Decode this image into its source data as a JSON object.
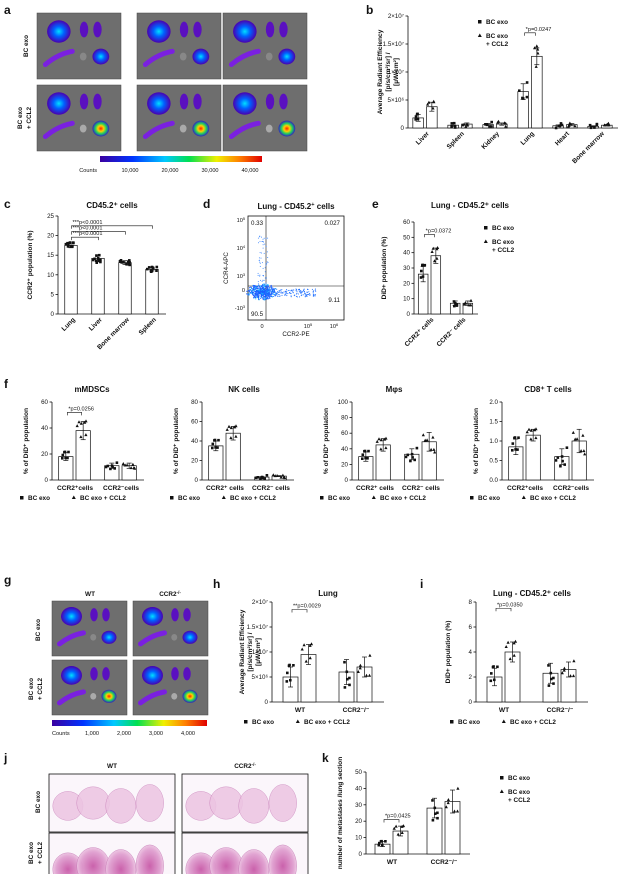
{
  "panel_letters": [
    "a",
    "b",
    "c",
    "d",
    "e",
    "f",
    "g",
    "h",
    "i",
    "j",
    "k"
  ],
  "imaging_a": {
    "rows": [
      "BC exo",
      "BC exo\n+ CCL2"
    ],
    "colorbar_label": "Counts",
    "colorbar_ticks": [
      "10,000",
      "20,000",
      "30,000",
      "40,000"
    ]
  },
  "imaging_g": {
    "cols": [
      "WT",
      "CCR2-/-"
    ],
    "rows": [
      "BC exo",
      "BC exo\n+ CCL2"
    ],
    "colorbar_label": "Counts",
    "colorbar_ticks": [
      "1,000",
      "2,000",
      "3,000",
      "4,000"
    ]
  },
  "histo_j": {
    "cols": [
      "WT",
      "CCR2-/-"
    ],
    "rows": [
      "BC exo",
      "BC exo\n+ CCL2"
    ]
  },
  "flow_d": {
    "title": "Lung - CD45.2+ cells",
    "xlabel": "CCR2-PE",
    "ylabel": "CCR4-APC",
    "quadrants": [
      "0.33",
      "0.027",
      "90.5",
      "9.11"
    ],
    "yticks": [
      "10^5",
      "10^4",
      "10^3",
      "0",
      "-10^3"
    ],
    "xticks": [
      "0",
      "10^5",
      "10^6"
    ]
  },
  "colors": {
    "ink": "#111111",
    "bar_fill": "#ffffff"
  },
  "chart_data": [
    {
      "id": "b",
      "type": "bar",
      "title": "",
      "ylabel": "Average Radiant Efficiency [p/s/cm²/sr] / [µW/cm²]",
      "ylim": [
        0,
        20000000
      ],
      "yticks": [
        "0",
        "5×10⁶",
        "1×10⁷",
        "1.5×10⁷",
        "2×10⁷"
      ],
      "categories": [
        "Liver",
        "Spleen",
        "Kidney",
        "Lung",
        "Heart",
        "Bone marrow"
      ],
      "series": [
        {
          "name": "BC exo",
          "values": [
            1800000,
            500000,
            600000,
            6500000,
            400000,
            300000
          ],
          "errors": [
            600000,
            200000,
            200000,
            1400000,
            150000,
            100000
          ]
        },
        {
          "name": "BC exo + CCL2",
          "values": [
            3800000,
            700000,
            700000,
            12800000,
            600000,
            500000
          ],
          "errors": [
            800000,
            200000,
            200000,
            1500000,
            200000,
            150000
          ]
        }
      ],
      "annotations": [
        "*p=0.0247"
      ],
      "legend": "top-right"
    },
    {
      "id": "c",
      "type": "bar",
      "title": "CD45.2⁺ cells",
      "ylabel": "CCR2⁺ population (%)",
      "ylim": [
        0,
        25
      ],
      "yticks": [
        "0",
        "5",
        "10",
        "15",
        "20",
        "25"
      ],
      "categories": [
        "Lung",
        "Liver",
        "Bone marrow",
        "Spleen"
      ],
      "values": [
        17.5,
        14.2,
        13.1,
        11.4
      ],
      "errors": [
        0.6,
        0.9,
        0.5,
        0.4
      ],
      "annotations": [
        "***p<0.0001",
        "***p<0.0001",
        "***p<0.0001"
      ]
    },
    {
      "id": "e",
      "type": "bar",
      "title": "Lung - CD45.2⁺ cells",
      "ylabel": "DiD+ population (%)",
      "ylim": [
        0,
        60
      ],
      "yticks": [
        "0",
        "10",
        "20",
        "30",
        "40",
        "50",
        "60"
      ],
      "categories": [
        "CCR2⁺ cells",
        "CCR2⁻ cells"
      ],
      "series": [
        {
          "name": "BC exo",
          "values": [
            26,
            7
          ],
          "errors": [
            5,
            1.5
          ]
        },
        {
          "name": "BC exo + CCL2",
          "values": [
            38,
            7
          ],
          "errors": [
            5,
            1.5
          ]
        }
      ],
      "annotations": [
        "*p=0.0372"
      ],
      "legend": "top-right"
    },
    {
      "id": "f1",
      "type": "bar",
      "title": "mMDSCs",
      "ylabel": "% of DiD⁺ population",
      "ylim": [
        0,
        60
      ],
      "yticks": [
        "0",
        "20",
        "40",
        "60"
      ],
      "categories": [
        "CCR2⁺cells",
        "CCR2⁻cells"
      ],
      "series": [
        {
          "name": "BC exo",
          "values": [
            18,
            11
          ],
          "errors": [
            3,
            2
          ]
        },
        {
          "name": "BC exo + CCL2",
          "values": [
            38,
            11
          ],
          "errors": [
            7,
            2
          ]
        }
      ],
      "annotations": [
        "*p=0.0256"
      ]
    },
    {
      "id": "f2",
      "type": "bar",
      "title": "NK cells",
      "ylabel": "% of DiD⁺ population",
      "ylim": [
        0,
        80
      ],
      "yticks": [
        "0",
        "20",
        "40",
        "60",
        "80"
      ],
      "categories": [
        "CCR2⁺ cells",
        "CCR2⁻ cells"
      ],
      "series": [
        {
          "name": "BC exo",
          "values": [
            35,
            3
          ],
          "errors": [
            5,
            0.5
          ]
        },
        {
          "name": "BC exo + CCL2",
          "values": [
            48,
            4
          ],
          "errors": [
            7,
            0.5
          ]
        }
      ]
    },
    {
      "id": "f3",
      "type": "bar",
      "title": "Mφs",
      "ylabel": "% of DiD⁺ population",
      "ylim": [
        0,
        100
      ],
      "yticks": [
        "0",
        "20",
        "40",
        "60",
        "80",
        "100"
      ],
      "categories": [
        "CCR2⁺ cells",
        "CCR2⁻ cells"
      ],
      "series": [
        {
          "name": "BC exo",
          "values": [
            30,
            33
          ],
          "errors": [
            6,
            7
          ]
        },
        {
          "name": "BC exo + CCL2",
          "values": [
            45,
            49
          ],
          "errors": [
            8,
            12
          ]
        }
      ]
    },
    {
      "id": "f4",
      "type": "bar",
      "title": "CD8⁺ T cells",
      "ylabel": "% of DiD⁺ population",
      "ylim": [
        0,
        2.0
      ],
      "yticks": [
        "0.0",
        "0.5",
        "1.0",
        "1.5",
        "2.0"
      ],
      "categories": [
        "CCR2⁺cells",
        "CCR2⁻cells"
      ],
      "series": [
        {
          "name": "BC exo",
          "values": [
            0.85,
            0.6
          ],
          "errors": [
            0.2,
            0.2
          ]
        },
        {
          "name": "BC exo + CCL2",
          "values": [
            1.15,
            1.0
          ],
          "errors": [
            0.15,
            0.3
          ]
        }
      ]
    },
    {
      "id": "h",
      "type": "bar",
      "title": "Lung",
      "ylabel": "Average Radiant Efficiency [p/s/cm²/sr] / [µW/cm²]",
      "ylim": [
        0,
        20000000
      ],
      "yticks": [
        "0",
        "5×10⁶",
        "1×10⁷",
        "1.5×10⁷",
        "2×10⁷"
      ],
      "categories": [
        "WT",
        "CCR2⁻/⁻"
      ],
      "series": [
        {
          "name": "BC exo",
          "values": [
            5000000,
            6000000
          ],
          "errors": [
            2000000,
            2500000
          ]
        },
        {
          "name": "BC exo + CCL2",
          "values": [
            9500000,
            7000000
          ],
          "errors": [
            2000000,
            2000000
          ]
        }
      ],
      "annotations": [
        "**p=0.0029"
      ]
    },
    {
      "id": "i",
      "type": "bar",
      "title": "Lung - CD45.2⁺ cells",
      "ylabel": "DiD+ population (%)",
      "ylim": [
        0,
        8
      ],
      "yticks": [
        "0",
        "2",
        "4",
        "6",
        "8"
      ],
      "categories": [
        "WT",
        "CCR2⁻/⁻"
      ],
      "series": [
        {
          "name": "BC exo",
          "values": [
            2.0,
            2.3
          ],
          "errors": [
            0.7,
            0.8
          ]
        },
        {
          "name": "BC exo + CCL2",
          "values": [
            4.0,
            2.6
          ],
          "errors": [
            0.8,
            0.6
          ]
        }
      ],
      "annotations": [
        "*p=0.0350"
      ]
    },
    {
      "id": "k",
      "type": "bar",
      "title": "",
      "ylabel": "number of metastases /lung section",
      "ylim": [
        0,
        50
      ],
      "yticks": [
        "0",
        "10",
        "20",
        "30",
        "40",
        "50"
      ],
      "categories": [
        "WT",
        "CCR2⁻/⁻"
      ],
      "series": [
        {
          "name": "BC exo",
          "values": [
            6,
            28
          ],
          "errors": [
            1.5,
            6
          ]
        },
        {
          "name": "BC exo + CCL2",
          "values": [
            14,
            32
          ],
          "errors": [
            3,
            7
          ]
        }
      ],
      "annotations": [
        "*p=0.0425"
      ],
      "legend": "top-right"
    }
  ]
}
